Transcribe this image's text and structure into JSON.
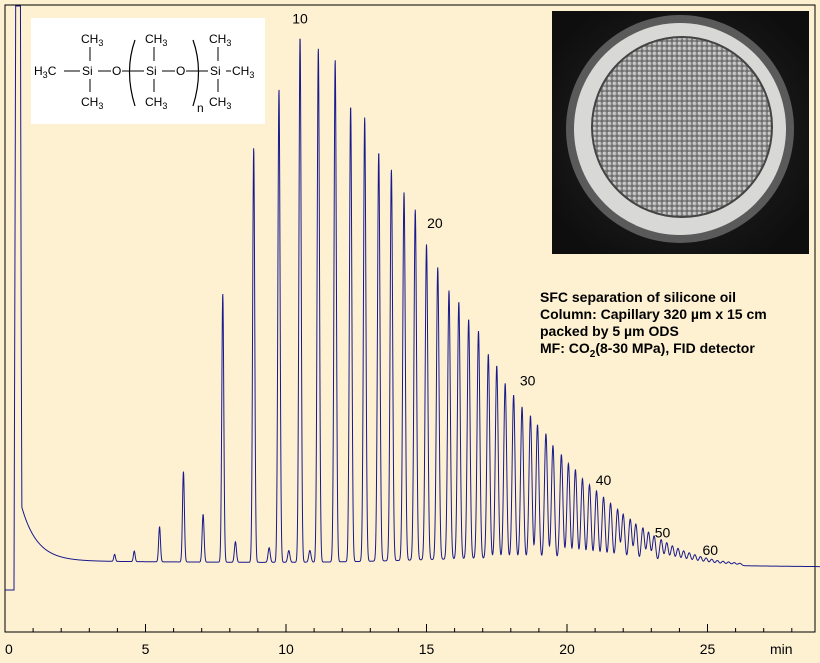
{
  "chart_data": {
    "type": "line",
    "title": "",
    "xlabel": "min",
    "ylabel": "",
    "xlim": [
      0,
      29.0
    ],
    "x_ticks": [
      0,
      5,
      10,
      15,
      20,
      25
    ],
    "x_tick_labels": [
      "0",
      "5",
      "10",
      "15",
      "20",
      "25"
    ],
    "grid": false,
    "line_color": "#1a1a8c",
    "series": [
      {
        "baseline": {
          "start_time": 0.5,
          "start_level": 0.16,
          "mid_level": 0.05,
          "end_time": 29.0,
          "end_level": 0.04
        },
        "solvent_peak": {
          "time": 0.45,
          "height": 1.0
        },
        "peaks": [
          {
            "t": 3.9,
            "h": 0.012
          },
          {
            "t": 4.6,
            "h": 0.018
          },
          {
            "t": 5.5,
            "h": 0.06
          },
          {
            "t": 6.35,
            "h": 0.155
          },
          {
            "t": 7.05,
            "h": 0.082
          },
          {
            "t": 7.75,
            "h": 0.46
          },
          {
            "t": 8.2,
            "h": 0.035
          },
          {
            "t": 8.85,
            "h": 0.71
          },
          {
            "t": 9.4,
            "h": 0.025
          },
          {
            "t": 9.75,
            "h": 0.81
          },
          {
            "t": 10.1,
            "h": 0.02
          },
          {
            "t": 10.5,
            "h": 0.9
          },
          {
            "t": 10.85,
            "h": 0.02
          },
          {
            "t": 11.15,
            "h": 0.88
          },
          {
            "t": 11.75,
            "h": 0.86
          },
          {
            "t": 12.3,
            "h": 0.78
          },
          {
            "t": 12.8,
            "h": 0.76
          },
          {
            "t": 13.3,
            "h": 0.7
          },
          {
            "t": 13.75,
            "h": 0.67
          },
          {
            "t": 14.2,
            "h": 0.63
          },
          {
            "t": 14.6,
            "h": 0.6
          },
          {
            "t": 15.0,
            "h": 0.54
          },
          {
            "t": 15.4,
            "h": 0.5
          },
          {
            "t": 15.8,
            "h": 0.46
          },
          {
            "t": 16.15,
            "h": 0.44
          },
          {
            "t": 16.5,
            "h": 0.41
          },
          {
            "t": 16.85,
            "h": 0.39
          },
          {
            "t": 17.2,
            "h": 0.35
          },
          {
            "t": 17.5,
            "h": 0.33
          },
          {
            "t": 17.8,
            "h": 0.3
          },
          {
            "t": 18.1,
            "h": 0.28
          },
          {
            "t": 18.4,
            "h": 0.26
          },
          {
            "t": 18.7,
            "h": 0.245
          },
          {
            "t": 18.95,
            "h": 0.23
          },
          {
            "t": 19.25,
            "h": 0.215
          },
          {
            "t": 19.5,
            "h": 0.195
          },
          {
            "t": 19.8,
            "h": 0.18
          },
          {
            "t": 20.05,
            "h": 0.165
          },
          {
            "t": 20.3,
            "h": 0.155
          },
          {
            "t": 20.55,
            "h": 0.14
          },
          {
            "t": 20.8,
            "h": 0.13
          },
          {
            "t": 21.05,
            "h": 0.12
          },
          {
            "t": 21.3,
            "h": 0.11
          },
          {
            "t": 21.55,
            "h": 0.1
          },
          {
            "t": 21.8,
            "h": 0.09
          },
          {
            "t": 22.0,
            "h": 0.082
          },
          {
            "t": 22.25,
            "h": 0.074
          },
          {
            "t": 22.45,
            "h": 0.066
          },
          {
            "t": 22.7,
            "h": 0.06
          },
          {
            "t": 22.9,
            "h": 0.053
          },
          {
            "t": 23.1,
            "h": 0.047
          },
          {
            "t": 23.35,
            "h": 0.041
          },
          {
            "t": 23.55,
            "h": 0.036
          },
          {
            "t": 23.75,
            "h": 0.031
          },
          {
            "t": 23.95,
            "h": 0.027
          },
          {
            "t": 24.15,
            "h": 0.023
          },
          {
            "t": 24.35,
            "h": 0.02
          },
          {
            "t": 24.55,
            "h": 0.017
          },
          {
            "t": 24.75,
            "h": 0.014
          },
          {
            "t": 24.95,
            "h": 0.012
          },
          {
            "t": 25.15,
            "h": 0.01
          },
          {
            "t": 25.35,
            "h": 0.008
          },
          {
            "t": 25.55,
            "h": 0.007
          },
          {
            "t": 25.75,
            "h": 0.006
          },
          {
            "t": 25.95,
            "h": 0.005
          },
          {
            "t": 26.15,
            "h": 0.004
          }
        ]
      }
    ],
    "annotations": [
      {
        "text": "10",
        "x": 10.5,
        "y": 0.97
      },
      {
        "text": "20",
        "x": 15.3,
        "y": 0.62
      },
      {
        "text": "30",
        "x": 18.6,
        "y": 0.35
      },
      {
        "text": "40",
        "x": 21.3,
        "y": 0.18
      },
      {
        "text": "50",
        "x": 23.4,
        "y": 0.09
      },
      {
        "text": "60",
        "x": 25.1,
        "y": 0.06
      }
    ]
  },
  "info": {
    "line1": "SFC separation of silicone oil",
    "line2": "Column: Capillary 320 µm x  15 cm",
    "line3": "packed by 5 µm ODS",
    "line4_pre": "MF: CO",
    "line4_sub": "2",
    "line4_post": "(8-30 MPa), FID detector"
  },
  "structure": {
    "ch3": "CH",
    "three": "3",
    "h3c": "H",
    "h3c_sub": "3",
    "h3c_c": "C",
    "si": "Si",
    "o": "O",
    "n": "n"
  }
}
